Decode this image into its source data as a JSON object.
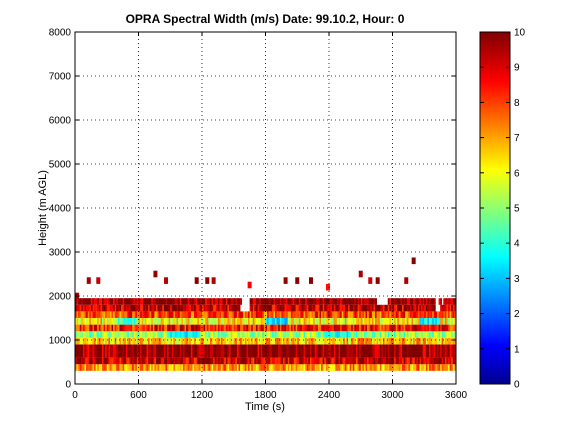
{
  "chart_data": {
    "type": "heatmap",
    "title": "OPRA Spectral Width (m/s)  Date: 99.10.2, Hour: 0",
    "xlabel": "Time (s)",
    "ylabel": "Height (m AGL)",
    "xlim": [
      0,
      3600
    ],
    "ylim": [
      0,
      8000
    ],
    "x_ticks": [
      "0",
      "600",
      "1200",
      "1800",
      "2400",
      "3000",
      "3600"
    ],
    "y_ticks": [
      "0",
      "1000",
      "2000",
      "3000",
      "4000",
      "5000",
      "6000",
      "7000",
      "8000"
    ],
    "grid": true,
    "colorbar": {
      "colormap": "jet",
      "range": [
        0,
        10
      ],
      "ticks": [
        "0",
        "1",
        "2",
        "3",
        "4",
        "5",
        "6",
        "7",
        "8",
        "9",
        "10"
      ]
    },
    "layers": [
      {
        "y0": 300,
        "y1": 450,
        "value": 7.2
      },
      {
        "y0": 450,
        "y1": 600,
        "value": 9.3
      },
      {
        "y0": 600,
        "y1": 900,
        "value": 9.9
      },
      {
        "y0": 900,
        "y1": 1050,
        "value": 6.8
      },
      {
        "y0": 1050,
        "y1": 1200,
        "value": 5.2
      },
      {
        "y0": 1200,
        "y1": 1350,
        "value": 8.6
      },
      {
        "y0": 1350,
        "y1": 1500,
        "value": 6.3
      },
      {
        "y0": 1500,
        "y1": 1650,
        "value": 8.1
      },
      {
        "y0": 1650,
        "y1": 1800,
        "value": 9.4
      },
      {
        "y0": 1800,
        "y1": 1950,
        "value": 9.8
      }
    ],
    "patches": [
      {
        "x0": 1800,
        "x1": 2000,
        "y0": 1350,
        "y1": 1500,
        "value": 3.4
      },
      {
        "x0": 900,
        "x1": 1150,
        "y0": 1050,
        "y1": 1200,
        "value": 3.6
      },
      {
        "x0": 2350,
        "x1": 2600,
        "y0": 1050,
        "y1": 1200,
        "value": 4.0
      },
      {
        "x0": 400,
        "x1": 600,
        "y0": 1350,
        "y1": 1500,
        "value": 4.3
      },
      {
        "x0": 3250,
        "x1": 3450,
        "y0": 1350,
        "y1": 1500,
        "value": 3.8
      }
    ],
    "gaps": [
      {
        "x0": 1550,
        "x1": 1650,
        "y0": 1650,
        "y1": 1950
      },
      {
        "x0": 2850,
        "x1": 2950,
        "y0": 1800,
        "y1": 1950
      },
      {
        "x0": 3400,
        "x1": 3480,
        "y0": 1650,
        "y1": 1950
      }
    ],
    "isolated": [
      {
        "x": 20,
        "y": 2000,
        "value": 9.6
      },
      {
        "x": 130,
        "y": 2350,
        "value": 9.7
      },
      {
        "x": 220,
        "y": 2350,
        "value": 9.3
      },
      {
        "x": 760,
        "y": 2500,
        "value": 9.8
      },
      {
        "x": 860,
        "y": 2350,
        "value": 9.5
      },
      {
        "x": 1150,
        "y": 2350,
        "value": 9.9
      },
      {
        "x": 1250,
        "y": 2350,
        "value": 9.9
      },
      {
        "x": 1310,
        "y": 2350,
        "value": 9.5
      },
      {
        "x": 1650,
        "y": 2250,
        "value": 8.8
      },
      {
        "x": 1990,
        "y": 2350,
        "value": 9.8
      },
      {
        "x": 2100,
        "y": 2350,
        "value": 9.9
      },
      {
        "x": 2230,
        "y": 2350,
        "value": 9.9
      },
      {
        "x": 2390,
        "y": 2200,
        "value": 8.6
      },
      {
        "x": 2700,
        "y": 2500,
        "value": 9.6
      },
      {
        "x": 2790,
        "y": 2350,
        "value": 9.2
      },
      {
        "x": 2860,
        "y": 2350,
        "value": 9.9
      },
      {
        "x": 3130,
        "y": 2350,
        "value": 9.6
      },
      {
        "x": 3200,
        "y": 2800,
        "value": 9.9
      }
    ]
  }
}
